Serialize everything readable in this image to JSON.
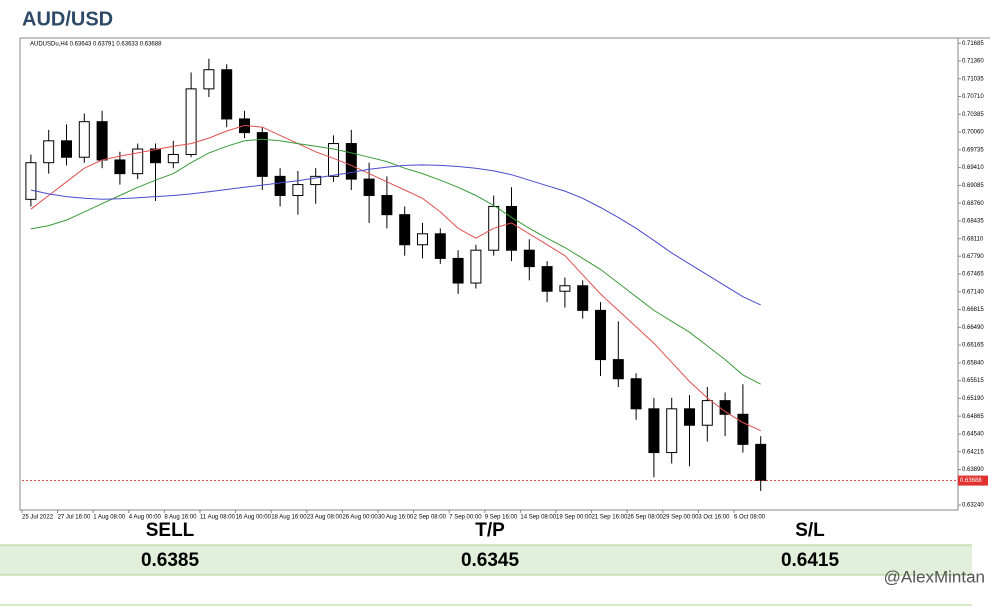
{
  "chart_data": {
    "type": "candlestick",
    "title": "AUD/USD",
    "header": "AUDUSDu,H4  0.63643 0.63791 0.63633 0.63688",
    "categories": [
      "25 Jul 2022",
      null,
      "27 Jul 16:00",
      null,
      "1 Aug 08:00",
      null,
      "4 Aug 00:00",
      null,
      "8 Aug 16:00",
      null,
      "11 Aug 08:00",
      null,
      "16 Aug 00:00",
      null,
      "18 Aug 16:00",
      null,
      "23 Aug 08:00",
      null,
      "26 Aug 00:00",
      null,
      "30 Aug 16:00",
      null,
      "2 Sep 08:00",
      null,
      "7 Sep 00:00",
      null,
      "9 Sep 16:00",
      null,
      "14 Sep 08:00",
      null,
      "19 Sep 00:00",
      null,
      "21 Sep 16:00",
      null,
      "26 Sep 08:00",
      null,
      "29 Sep 00:00",
      null,
      "3 Oct 16:00",
      null,
      "6 Oct 08:00",
      null
    ],
    "open": [
      0.6883,
      0.695,
      0.699,
      0.696,
      0.7025,
      0.6955,
      0.693,
      0.6975,
      0.695,
      0.6965,
      0.7085,
      0.712,
      0.703,
      0.7005,
      0.6925,
      0.689,
      0.691,
      0.6925,
      0.6985,
      0.692,
      0.689,
      0.6855,
      0.68,
      0.682,
      0.6775,
      0.673,
      0.679,
      0.687,
      0.679,
      0.676,
      0.6715,
      0.6725,
      0.668,
      0.659,
      0.6555,
      0.65,
      0.642,
      0.65,
      0.647,
      0.6515,
      0.649,
      0.6435
    ],
    "high": [
      0.6965,
      0.701,
      0.702,
      0.704,
      0.7045,
      0.697,
      0.6985,
      0.6985,
      0.699,
      0.7115,
      0.714,
      0.713,
      0.7045,
      0.7015,
      0.694,
      0.6935,
      0.694,
      0.7,
      0.701,
      0.695,
      0.6925,
      0.687,
      0.684,
      0.683,
      0.679,
      0.68,
      0.689,
      0.6905,
      0.681,
      0.677,
      0.674,
      0.6735,
      0.6695,
      0.666,
      0.6565,
      0.652,
      0.652,
      0.6525,
      0.654,
      0.653,
      0.6545,
      0.645
    ],
    "low": [
      0.687,
      0.693,
      0.6945,
      0.695,
      0.694,
      0.691,
      0.692,
      0.688,
      0.694,
      0.696,
      0.707,
      0.7015,
      0.6995,
      0.69,
      0.687,
      0.6855,
      0.6875,
      0.6915,
      0.69,
      0.684,
      0.683,
      0.678,
      0.6775,
      0.6765,
      0.671,
      0.672,
      0.678,
      0.677,
      0.6735,
      0.6695,
      0.6685,
      0.6665,
      0.656,
      0.654,
      0.648,
      0.6375,
      0.64,
      0.6395,
      0.644,
      0.645,
      0.642,
      0.635
    ],
    "close": [
      0.695,
      0.699,
      0.696,
      0.7025,
      0.6955,
      0.693,
      0.6975,
      0.695,
      0.6965,
      0.7085,
      0.712,
      0.703,
      0.7005,
      0.6925,
      0.689,
      0.691,
      0.6925,
      0.6985,
      0.692,
      0.689,
      0.6855,
      0.68,
      0.682,
      0.6775,
      0.673,
      0.679,
      0.687,
      0.679,
      0.676,
      0.6715,
      0.6725,
      0.668,
      0.659,
      0.6555,
      0.65,
      0.642,
      0.65,
      0.647,
      0.6515,
      0.649,
      0.6435,
      0.6369
    ],
    "series": [
      {
        "color": "#e05050",
        "values": [
          0.6865,
          0.689,
          0.6915,
          0.694,
          0.6955,
          0.6962,
          0.6968,
          0.6974,
          0.698,
          0.6985,
          0.6995,
          0.7008,
          0.7018,
          0.7015,
          0.7,
          0.6985,
          0.697,
          0.6958,
          0.6945,
          0.693,
          0.6915,
          0.69,
          0.6885,
          0.686,
          0.683,
          0.6812,
          0.683,
          0.684,
          0.682,
          0.68,
          0.678,
          0.6745,
          0.671,
          0.668,
          0.665,
          0.662,
          0.6585,
          0.655,
          0.652,
          0.6495,
          0.6475,
          0.646
        ]
      },
      {
        "color": "#3a9a3a",
        "values": [
          0.6829,
          0.6835,
          0.6845,
          0.686,
          0.6875,
          0.689,
          0.6905,
          0.6918,
          0.693,
          0.695,
          0.6968,
          0.698,
          0.699,
          0.6993,
          0.699,
          0.6985,
          0.698,
          0.6975,
          0.6968,
          0.696,
          0.6952,
          0.694,
          0.693,
          0.6918,
          0.6905,
          0.689,
          0.6872,
          0.685,
          0.683,
          0.6812,
          0.6795,
          0.6775,
          0.6755,
          0.673,
          0.6705,
          0.668,
          0.666,
          0.664,
          0.6615,
          0.659,
          0.6562,
          0.6545
        ]
      },
      {
        "color": "#4a4ad0",
        "values": [
          0.69,
          0.6893,
          0.6888,
          0.6885,
          0.6883,
          0.6884,
          0.6886,
          0.6888,
          0.689,
          0.6893,
          0.6897,
          0.6901,
          0.6905,
          0.6909,
          0.6913,
          0.6917,
          0.6922,
          0.6927,
          0.6932,
          0.6938,
          0.6942,
          0.6945,
          0.6946,
          0.6945,
          0.6943,
          0.694,
          0.6935,
          0.6928,
          0.6918,
          0.6908,
          0.6898,
          0.6885,
          0.6868,
          0.685,
          0.683,
          0.6808,
          0.6785,
          0.6765,
          0.6745,
          0.6725,
          0.6705,
          0.669
        ]
      }
    ],
    "current_price": 0.63688,
    "current_price_color": "#e03030",
    "ylim": [
      0.6315,
      0.7178
    ],
    "yticks": [
      0.71685,
      {
        "value": 0.7136,
        "label": "0.71360"
      },
      0.71035,
      {
        "value": 0.7071,
        "label": "0.70710"
      },
      0.70385,
      {
        "value": 0.7006,
        "label": "0.70060"
      },
      0.69735,
      {
        "value": 0.6941,
        "label": "0.69410"
      },
      0.69085,
      {
        "value": 0.6876,
        "label": "0.68760"
      },
      0.68435,
      {
        "value": 0.6811,
        "label": "0.68110"
      },
      {
        "value": 0.6779,
        "label": "0.67790"
      },
      0.67465,
      {
        "value": 0.6714,
        "label": "0.67140"
      },
      0.66815,
      {
        "value": 0.6649,
        "label": "0.66490"
      },
      0.66165,
      {
        "value": 0.6584,
        "label": "0.65840"
      },
      0.65515,
      {
        "value": 0.6519,
        "label": "0.65190"
      },
      0.64865,
      {
        "value": 0.6454,
        "label": "0.64540"
      },
      0.64215,
      {
        "value": 0.6389,
        "label": "0.63890"
      },
      {
        "value": 0.6324,
        "label": "0.63240"
      }
    ],
    "grid": false
  },
  "trade": {
    "headers": [
      "SELL",
      "T/P",
      "S/L"
    ],
    "values": [
      "0.6385",
      "0.6345",
      "0.6415"
    ]
  },
  "watermark": "@AlexMintan"
}
